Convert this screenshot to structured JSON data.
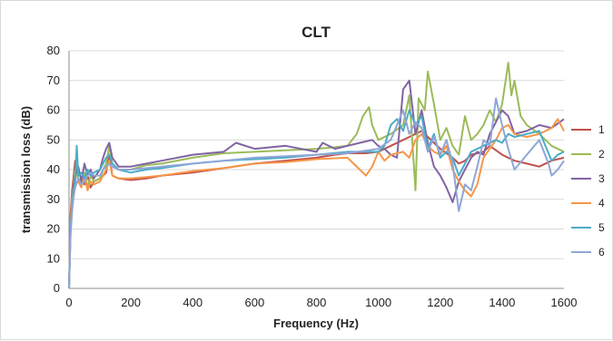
{
  "chart_data": {
    "type": "line",
    "title": "CLT",
    "xlabel": "Frequency (Hz)",
    "ylabel": "transmission loss (dB)",
    "xlim": [
      0,
      1600
    ],
    "ylim": [
      0,
      80
    ],
    "xticks": [
      "0",
      "200",
      "400",
      "600",
      "800",
      "1000",
      "1200",
      "1400",
      "1600"
    ],
    "yticks": [
      "0",
      "10",
      "20",
      "30",
      "40",
      "50",
      "60",
      "70",
      "80"
    ],
    "grid": "horizontal",
    "legend_position": "right",
    "series": [
      {
        "name": "1",
        "color": "#c0504d",
        "x": [
          0,
          5,
          10,
          15,
          20,
          30,
          40,
          50,
          60,
          70,
          80,
          100,
          110,
          120,
          130,
          140,
          160,
          200,
          250,
          300,
          400,
          500,
          600,
          700,
          800,
          860,
          900,
          960,
          1000,
          1040,
          1080,
          1100,
          1120,
          1140,
          1160,
          1200,
          1240,
          1260,
          1280,
          1300,
          1340,
          1360,
          1400,
          1440,
          1480,
          1520,
          1560,
          1600
        ],
        "y": [
          0,
          25,
          33,
          38,
          43,
          36,
          37,
          35,
          38,
          34,
          36,
          37,
          38,
          39,
          45,
          38,
          37,
          36.5,
          37,
          38,
          39,
          40.5,
          42,
          43,
          44,
          45,
          45.5,
          45.5,
          46,
          48,
          50,
          51,
          52,
          53,
          51,
          47,
          44,
          42,
          43,
          45,
          46,
          48,
          45,
          43,
          42,
          41,
          43,
          44
        ]
      },
      {
        "name": "2",
        "color": "#9bbb59",
        "x": [
          0,
          5,
          10,
          15,
          20,
          30,
          40,
          50,
          60,
          70,
          80,
          100,
          110,
          120,
          130,
          140,
          160,
          200,
          250,
          300,
          400,
          500,
          600,
          700,
          800,
          860,
          900,
          930,
          950,
          970,
          980,
          1000,
          1040,
          1080,
          1100,
          1120,
          1130,
          1150,
          1160,
          1180,
          1200,
          1220,
          1240,
          1260,
          1280,
          1300,
          1320,
          1340,
          1360,
          1380,
          1400,
          1420,
          1430,
          1440,
          1460,
          1480,
          1520,
          1560,
          1600
        ],
        "y": [
          0,
          22,
          31,
          36,
          40,
          37,
          35,
          39,
          34,
          38,
          36,
          37,
          40,
          42,
          48,
          42,
          40,
          40,
          41.5,
          42,
          44,
          45.5,
          46,
          46.5,
          47,
          47.5,
          48,
          52,
          58,
          61,
          55,
          50,
          52,
          55,
          65,
          33,
          64,
          60,
          73,
          62,
          50,
          54,
          48,
          45,
          58,
          50,
          52,
          55,
          60,
          56,
          62,
          76,
          65,
          70,
          58,
          55,
          52,
          48,
          46
        ]
      },
      {
        "name": "3",
        "color": "#8064a2",
        "x": [
          0,
          5,
          10,
          15,
          20,
          30,
          40,
          50,
          60,
          70,
          80,
          100,
          110,
          120,
          130,
          140,
          160,
          200,
          250,
          300,
          400,
          500,
          540,
          600,
          700,
          800,
          820,
          860,
          900,
          940,
          980,
          1000,
          1020,
          1040,
          1060,
          1080,
          1100,
          1120,
          1140,
          1160,
          1180,
          1200,
          1220,
          1240,
          1260,
          1280,
          1300,
          1320,
          1340,
          1360,
          1400,
          1420,
          1440,
          1480,
          1520,
          1560,
          1600
        ],
        "y": [
          0,
          20,
          30,
          35,
          38,
          41,
          36,
          42,
          38,
          40,
          37,
          40,
          44,
          47,
          49,
          44,
          41,
          41,
          42,
          43,
          45,
          46,
          49,
          47,
          48,
          46,
          49,
          47,
          48,
          49,
          50,
          48,
          47,
          45,
          44,
          67,
          70,
          52,
          60,
          49,
          41,
          38,
          34,
          29,
          36,
          40,
          44,
          46,
          45,
          52,
          60,
          58,
          52,
          53,
          55,
          54,
          57
        ]
      },
      {
        "name": "4",
        "color": "#f79646",
        "x": [
          0,
          5,
          10,
          15,
          20,
          30,
          40,
          50,
          60,
          70,
          80,
          100,
          110,
          120,
          130,
          140,
          160,
          200,
          250,
          300,
          400,
          500,
          600,
          700,
          800,
          900,
          960,
          980,
          1000,
          1020,
          1040,
          1080,
          1100,
          1120,
          1140,
          1160,
          1180,
          1200,
          1220,
          1240,
          1260,
          1280,
          1300,
          1320,
          1340,
          1380,
          1400,
          1420,
          1440,
          1480,
          1520,
          1560,
          1580,
          1600
        ],
        "y": [
          0,
          22,
          30,
          33,
          35,
          36,
          34,
          38,
          33,
          36,
          35,
          36,
          38,
          40,
          43,
          38,
          37,
          37,
          37.5,
          38,
          39.5,
          40.5,
          42,
          42.5,
          43.5,
          44,
          38,
          41,
          46,
          43,
          45,
          46,
          44,
          50,
          52,
          48,
          46,
          45,
          48,
          40,
          36,
          33,
          31,
          35,
          44,
          50,
          54,
          55,
          52,
          51,
          52,
          54,
          57,
          53
        ]
      },
      {
        "name": "5",
        "color": "#4bacc6",
        "x": [
          0,
          5,
          10,
          15,
          20,
          25,
          30,
          40,
          50,
          60,
          70,
          80,
          100,
          110,
          120,
          130,
          140,
          160,
          200,
          250,
          300,
          400,
          500,
          600,
          700,
          800,
          900,
          1000,
          1020,
          1040,
          1060,
          1080,
          1100,
          1120,
          1140,
          1160,
          1180,
          1200,
          1220,
          1240,
          1260,
          1280,
          1300,
          1340,
          1380,
          1400,
          1420,
          1440,
          1480,
          1520,
          1540,
          1560,
          1580,
          1600
        ],
        "y": [
          0,
          20,
          28,
          33,
          36,
          48,
          38,
          39,
          37,
          40,
          38,
          39,
          40,
          42,
          44,
          45,
          42,
          40,
          39,
          40,
          40.5,
          42,
          43,
          43.5,
          44,
          45,
          46,
          46,
          48,
          55,
          57,
          53,
          60,
          55,
          58,
          47,
          52,
          44,
          46,
          44,
          38,
          42,
          46,
          48,
          50,
          49,
          52,
          51,
          52,
          53,
          48,
          43,
          45,
          46
        ]
      },
      {
        "name": "6",
        "color": "#8fa6d6",
        "x": [
          0,
          5,
          10,
          15,
          20,
          30,
          40,
          50,
          60,
          70,
          80,
          100,
          110,
          120,
          130,
          140,
          160,
          200,
          250,
          300,
          400,
          500,
          600,
          700,
          800,
          900,
          1000,
          1040,
          1060,
          1080,
          1100,
          1120,
          1140,
          1160,
          1180,
          1200,
          1220,
          1240,
          1260,
          1280,
          1300,
          1320,
          1340,
          1360,
          1380,
          1400,
          1420,
          1440,
          1480,
          1520,
          1550,
          1560,
          1580,
          1600
        ],
        "y": [
          0,
          18,
          26,
          31,
          34,
          37,
          35,
          36,
          38,
          39,
          38,
          38,
          40,
          41,
          42,
          41,
          40,
          40,
          40.5,
          41,
          42,
          43,
          44,
          44.5,
          45,
          45.5,
          47,
          50,
          55,
          60,
          52,
          56,
          54,
          46,
          51,
          45,
          50,
          42,
          26,
          35,
          33,
          41,
          50,
          48,
          64,
          55,
          47,
          40,
          45,
          50,
          42,
          38,
          40,
          43
        ]
      }
    ]
  }
}
